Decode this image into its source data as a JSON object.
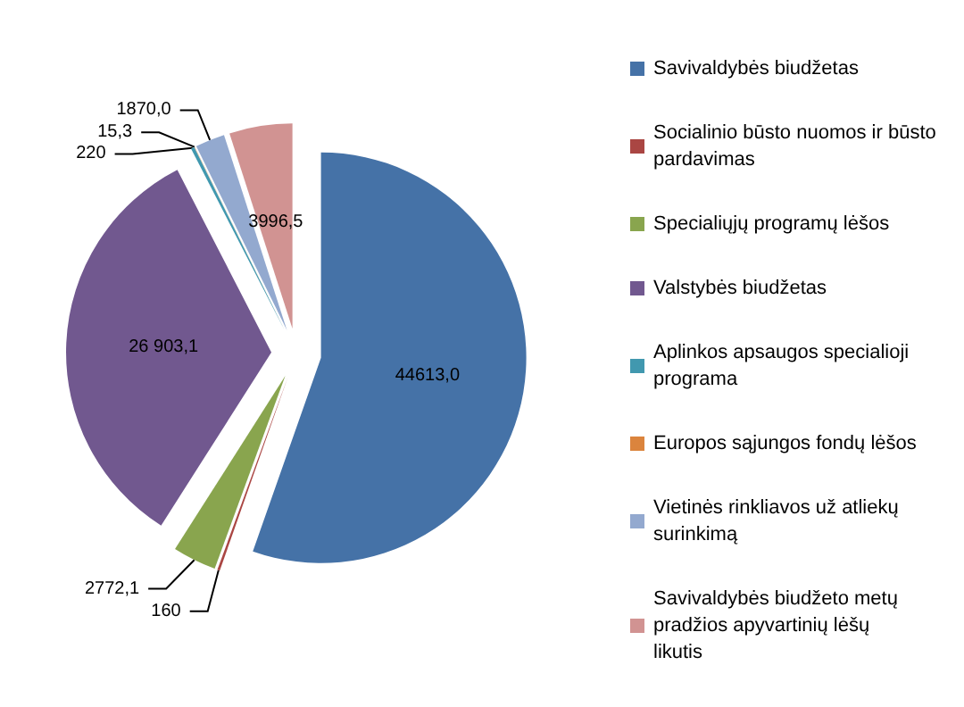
{
  "chart_data": {
    "type": "pie",
    "categories": [
      "Savivaldybės biudžetas",
      "Socialinio būsto nuomos ir būsto pardavimas",
      "Specialiųjų programų lėšos",
      "Valstybės biudžetas",
      "Aplinkos apsaugos specialioji programa",
      "Europos sąjungos fondų lėšos",
      "Vietinės rinkliavos už atliekų surinkimą",
      "Savivaldybės biudžeto metų pradžios apyvartinių lėšų likutis"
    ],
    "values": [
      44613.0,
      160,
      2772.1,
      26903.1,
      220,
      15.3,
      1870.0,
      3996.5
    ],
    "value_labels": [
      "44613,0",
      "160",
      "2772,1",
      "26 903,1",
      "220",
      "15,3",
      "1870,0",
      "3996,5"
    ],
    "colors": [
      "#4572a7",
      "#aa4643",
      "#89a54e",
      "#71588f",
      "#4198af",
      "#db843d",
      "#93a9cf",
      "#d19392"
    ],
    "legend": "right"
  }
}
